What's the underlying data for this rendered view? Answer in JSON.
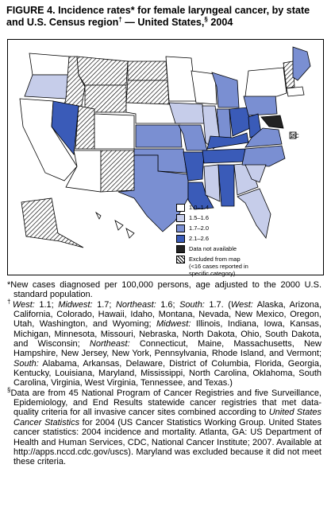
{
  "header": {
    "title": [
      "FIGURE 4. Incidence rates* for female laryngeal cancer, by state and U.S. Census region",
      "†",
      " — United States,",
      "§",
      " 2004"
    ]
  },
  "legend": {
    "items": [
      {
        "label": "1.0–1.4",
        "color": "#ffffff"
      },
      {
        "label": "1.5–1.6",
        "color": "#c6cdea"
      },
      {
        "label": "1.7–2.0",
        "color": "#7a8fd2"
      },
      {
        "label": "2.1–2.6",
        "color": "#3a5bb8"
      },
      {
        "label": "Data not available",
        "color": "#222222"
      },
      {
        "label": [
          "Excluded from map",
          "(<16 cases reported in",
          "specific category)"
        ],
        "color": "hatch"
      }
    ],
    "dc_label": "DC"
  },
  "footnotes": [
    {
      "marker": "*",
      "runs": [
        "New cases diagnosed per 100,000 persons, age adjusted to the 2000 U.S. standard population."
      ]
    },
    {
      "marker": "†",
      "runs": [
        "",
        "West:",
        " 1.1; ",
        "Midwest:",
        " 1.7; ",
        "Northeast:",
        " 1.6; ",
        "South:",
        " 1.7. (",
        "West:",
        " Alaska, Arizona, California, Colorado, Hawaii, Idaho, Montana, Nevada, New Mexico, Oregon, Utah, Washington, and Wyoming; ",
        "Midwest:",
        " Illinois, Indiana, Iowa, Kansas, Michigan, Minnesota, Missouri, Nebraska, North Dakota, Ohio, South Dakota, and Wisconsin; ",
        "Northeast:",
        " Connecticut, Maine, Massachusetts, New Hampshire, New Jersey, New York, Pennsylvania, Rhode Island, and Vermont; ",
        "South:",
        " Alabama, Arkansas, Delaware, District of Columbia, Florida, Georgia, Kentucky, Louisiana, Maryland, Mississippi, North Carolina, Oklahoma, South Carolina, Virginia, West Virginia, Tennessee, and Texas.)"
      ]
    },
    {
      "marker": "§",
      "runs": [
        "Data are from 45 National Program of Cancer Registries and five Surveillance, Epidemiology, and End Results statewide cancer registries that met data-quality criteria for all invasive cancer sites combined according to ",
        "United States Cancer Statistics",
        " for 2004 (US Cancer Statistics Working Group. United States cancer statistics: 2004 incidence and mortality. Atlanta, GA: US Department of Health and Human Services, CDC, National Cancer Institute; 2007. Available at http://apps.nccd.cdc.gov/uscs). Maryland was excluded because it did not meet these criteria."
      ]
    }
  ]
}
